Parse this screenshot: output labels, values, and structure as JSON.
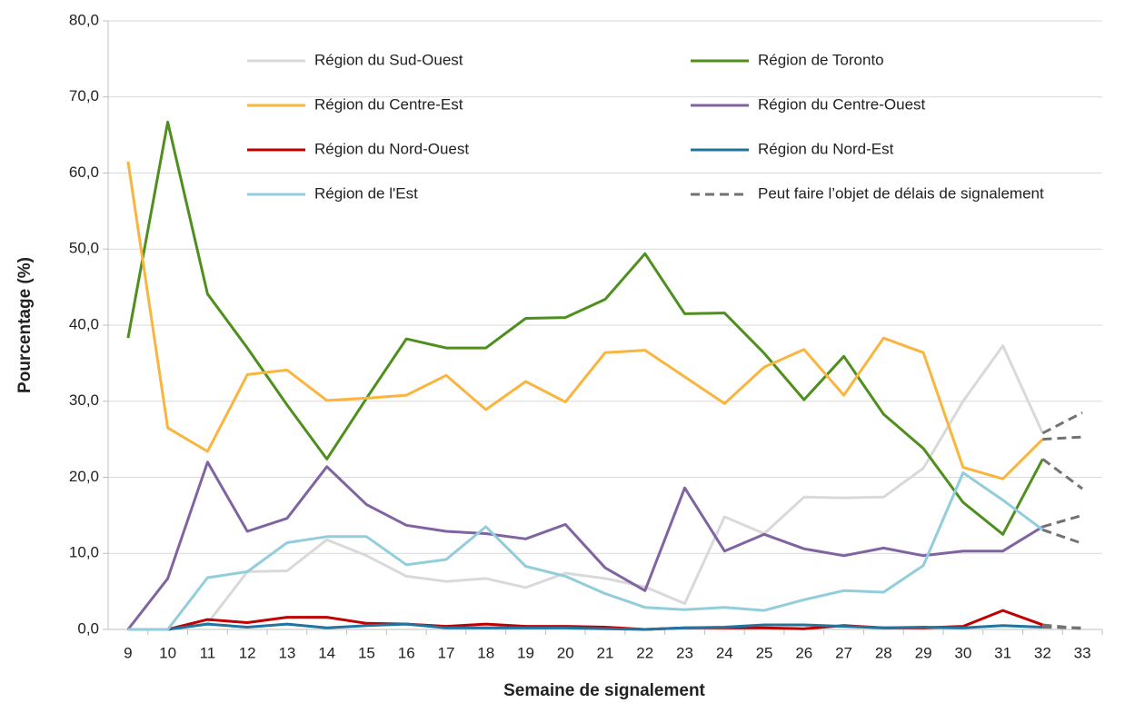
{
  "chart_data": {
    "type": "line",
    "x_label": "Semaine de signalement",
    "y_label": "Pourcentage (%)",
    "categories": [
      "9",
      "10",
      "11",
      "12",
      "13",
      "14",
      "15",
      "16",
      "17",
      "18",
      "19",
      "20",
      "21",
      "22",
      "23",
      "24",
      "25",
      "26",
      "27",
      "28",
      "29",
      "30",
      "31",
      "32",
      "33"
    ],
    "ylim": [
      0,
      80
    ],
    "yticks": [
      {
        "value": 0,
        "label": "0,0"
      },
      {
        "value": 10,
        "label": "10,0"
      },
      {
        "value": 20,
        "label": "20,0"
      },
      {
        "value": 30,
        "label": "30,0"
      },
      {
        "value": 40,
        "label": "40,0"
      },
      {
        "value": 50,
        "label": "50,0"
      },
      {
        "value": 60,
        "label": "60,0"
      },
      {
        "value": 70,
        "label": "70,0"
      },
      {
        "value": 80,
        "label": "80,0"
      }
    ],
    "grid": true,
    "delay": {
      "name": "Peut faire l’objet de délais de signalement",
      "color": "#767171",
      "from_category": "32"
    },
    "series": [
      {
        "name": "Région du Sud-Ouest",
        "color": "#d9d9d9",
        "values": [
          0,
          0,
          0.8,
          7.6,
          7.7,
          11.8,
          9.7,
          7.0,
          6.3,
          6.7,
          5.5,
          7.4,
          6.7,
          5.6,
          3.4,
          14.8,
          12.6,
          17.4,
          17.3,
          17.4,
          21.2,
          30.0,
          37.3,
          25.8,
          28.5
        ]
      },
      {
        "name": "Région de Toronto",
        "color": "#4f8f1e",
        "values": [
          38.3,
          66.7,
          44.1,
          37.0,
          29.5,
          22.4,
          30.4,
          38.2,
          37.0,
          37.0,
          40.9,
          41.0,
          43.4,
          49.4,
          41.5,
          41.6,
          36.3,
          30.2,
          35.9,
          28.3,
          23.8,
          16.7,
          12.5,
          22.4,
          18.5
        ]
      },
      {
        "name": "Région du Centre-Est",
        "color": "#f9b53e",
        "values": [
          61.5,
          26.5,
          23.4,
          33.5,
          34.1,
          30.1,
          30.4,
          30.8,
          33.4,
          28.9,
          32.6,
          29.9,
          36.4,
          36.7,
          33.2,
          29.7,
          34.5,
          36.8,
          30.8,
          38.3,
          36.4,
          21.3,
          19.8,
          25.0,
          25.3
        ]
      },
      {
        "name": "Région du Centre-Ouest",
        "color": "#8064a2",
        "values": [
          0,
          6.7,
          22.0,
          12.9,
          14.6,
          21.4,
          16.4,
          13.7,
          12.9,
          12.6,
          11.9,
          13.8,
          8.1,
          5.1,
          18.6,
          10.3,
          12.5,
          10.6,
          9.7,
          10.7,
          9.7,
          10.3,
          10.3,
          13.5,
          15.0
        ]
      },
      {
        "name": "Région du Nord-Ouest",
        "color": "#c00000",
        "values": [
          0,
          0,
          1.3,
          0.9,
          1.6,
          1.6,
          0.8,
          0.7,
          0.4,
          0.7,
          0.4,
          0.4,
          0.3,
          0,
          0.2,
          0.2,
          0.2,
          0.1,
          0.5,
          0.2,
          0.2,
          0.4,
          2.5,
          0.6,
          0.1
        ]
      },
      {
        "name": "Région du Nord-Est",
        "color": "#1f74a0",
        "values": [
          0,
          0,
          0.7,
          0.3,
          0.7,
          0.2,
          0.5,
          0.7,
          0.2,
          0.2,
          0.2,
          0.2,
          0.1,
          0,
          0.2,
          0.3,
          0.6,
          0.6,
          0.4,
          0.2,
          0.3,
          0.2,
          0.5,
          0.3,
          0.2
        ]
      },
      {
        "name": "Région de l'Est",
        "color": "#92cddc",
        "values": [
          0,
          0,
          6.8,
          7.6,
          11.4,
          12.2,
          12.2,
          8.5,
          9.2,
          13.5,
          8.3,
          7.0,
          4.7,
          2.9,
          2.6,
          2.9,
          2.5,
          3.9,
          5.1,
          4.9,
          8.4,
          20.6,
          17.0,
          13.1,
          11.3
        ]
      }
    ]
  }
}
